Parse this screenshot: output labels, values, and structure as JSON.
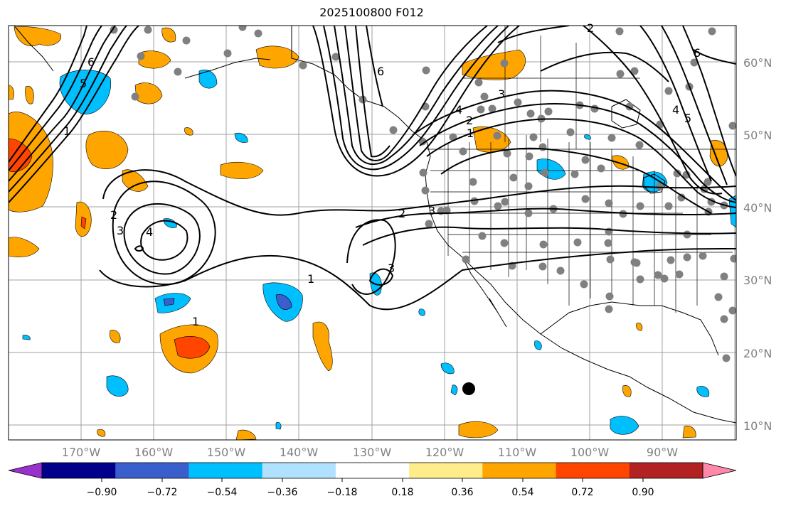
{
  "title": "2025100800 F012",
  "map": {
    "region": "North Pacific and North America",
    "gridlines": true,
    "lon_labels": [
      "170°W",
      "160°W",
      "150°W",
      "140°W",
      "130°W",
      "120°W",
      "110°W",
      "100°W",
      "90°W"
    ],
    "lat_labels": [
      "60°N",
      "50°N",
      "40°N",
      "30°N",
      "20°N",
      "10°N"
    ],
    "contour_labels": [
      "6",
      "5",
      "4",
      "3",
      "2",
      "1"
    ]
  },
  "colorbar": {
    "tick_labels": [
      "−0.90",
      "−0.72",
      "−0.54",
      "−0.36",
      "−0.18",
      "0.18",
      "0.36",
      "0.54",
      "0.72",
      "0.90"
    ],
    "colors": [
      "#9932cc",
      "#00008b",
      "#3a5fcd",
      "#00bfff",
      "#b0e2ff",
      "#ffffff",
      "#ffec8b",
      "#ffa500",
      "#ff4500",
      "#b22222",
      "#ff88aa"
    ]
  },
  "legend_colors": {
    "station_dot": "#808080",
    "storm_marker": "#000000",
    "positive_fill": "#ffa500",
    "negative_fill": "#00bfff"
  }
}
